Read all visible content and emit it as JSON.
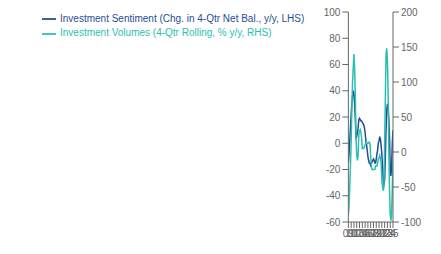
{
  "chart_data": {
    "type": "line",
    "x": [
      9.0,
      9.25,
      9.5,
      9.75,
      10.0,
      10.25,
      10.5,
      10.75,
      11.0,
      11.25,
      11.5,
      11.75,
      12.0,
      12.25,
      12.5,
      12.75,
      13.0,
      13.25,
      13.5,
      13.75,
      14.0,
      14.25,
      14.5,
      14.75,
      15.0,
      15.25,
      15.5,
      15.75,
      16.0,
      16.25,
      16.5,
      16.75,
      17.0,
      17.25,
      17.5,
      17.75,
      18.0,
      18.25,
      18.5,
      18.75,
      19.0,
      19.25,
      19.5,
      19.75,
      20.0,
      20.25,
      20.5,
      20.75,
      21.0,
      21.25,
      21.5,
      21.75,
      22.0,
      22.25,
      22.5,
      22.75,
      23.0,
      23.25,
      23.5,
      23.75,
      24.0,
      24.25,
      24.5,
      24.75,
      25.0
    ],
    "series": [
      {
        "name": "Investment Sentiment (Chg. in 4-Qtr Net Bal., y/y, LHS)",
        "color": "#1f4e96",
        "values": [
          -15,
          -8,
          2,
          12,
          22,
          30,
          36,
          40,
          38,
          30,
          18,
          4,
          5,
          8,
          12,
          18,
          19,
          18,
          17,
          17,
          16,
          15,
          14,
          12,
          8,
          3,
          -1,
          -5,
          -10,
          -13,
          -15,
          -15,
          -17,
          -16,
          -14,
          -13,
          -12,
          -13,
          -15,
          -15,
          -12,
          -8,
          -5,
          0,
          2,
          5,
          3,
          -2,
          -8,
          -18,
          -28,
          -32,
          -28,
          -10,
          10,
          25,
          30,
          28,
          18,
          5,
          -18,
          -25,
          -18,
          0,
          10
        ]
      },
      {
        "name": "Investment Volumes (4-Qtr Rolling, % y/y, RHS)",
        "color": "#2abfb0",
        "axis": "y2",
        "values": [
          -90,
          -75,
          -50,
          -20,
          15,
          60,
          100,
          120,
          140,
          118,
          80,
          20,
          -5,
          -12,
          -5,
          25,
          30,
          32,
          28,
          20,
          5,
          5,
          5,
          8,
          10,
          12,
          14,
          12,
          12,
          14,
          14,
          12,
          -8,
          -20,
          -25,
          -25,
          -25,
          -25,
          -25,
          -20,
          -20,
          -20,
          -15,
          -10,
          -8,
          -5,
          -10,
          -15,
          -40,
          -50,
          -55,
          -50,
          10,
          75,
          140,
          148,
          130,
          85,
          5,
          -55,
          -90,
          -98,
          -88,
          -52,
          -10
        ]
      }
    ],
    "xlim": [
      9,
      25
    ],
    "xticks": [
      {
        "value": 9,
        "label": "09"
      },
      10,
      11,
      12,
      13,
      14,
      15,
      16,
      17,
      18,
      19,
      20,
      21,
      22,
      23,
      24,
      25
    ],
    "ylim": [
      -60,
      100
    ],
    "yticks": [
      -60,
      -40,
      -20,
      0,
      20,
      40,
      60,
      80,
      100
    ],
    "y2lim": [
      -100,
      200
    ],
    "y2ticks": [
      -100,
      -50,
      0,
      50,
      100,
      150,
      200
    ],
    "legend": "upper left"
  }
}
